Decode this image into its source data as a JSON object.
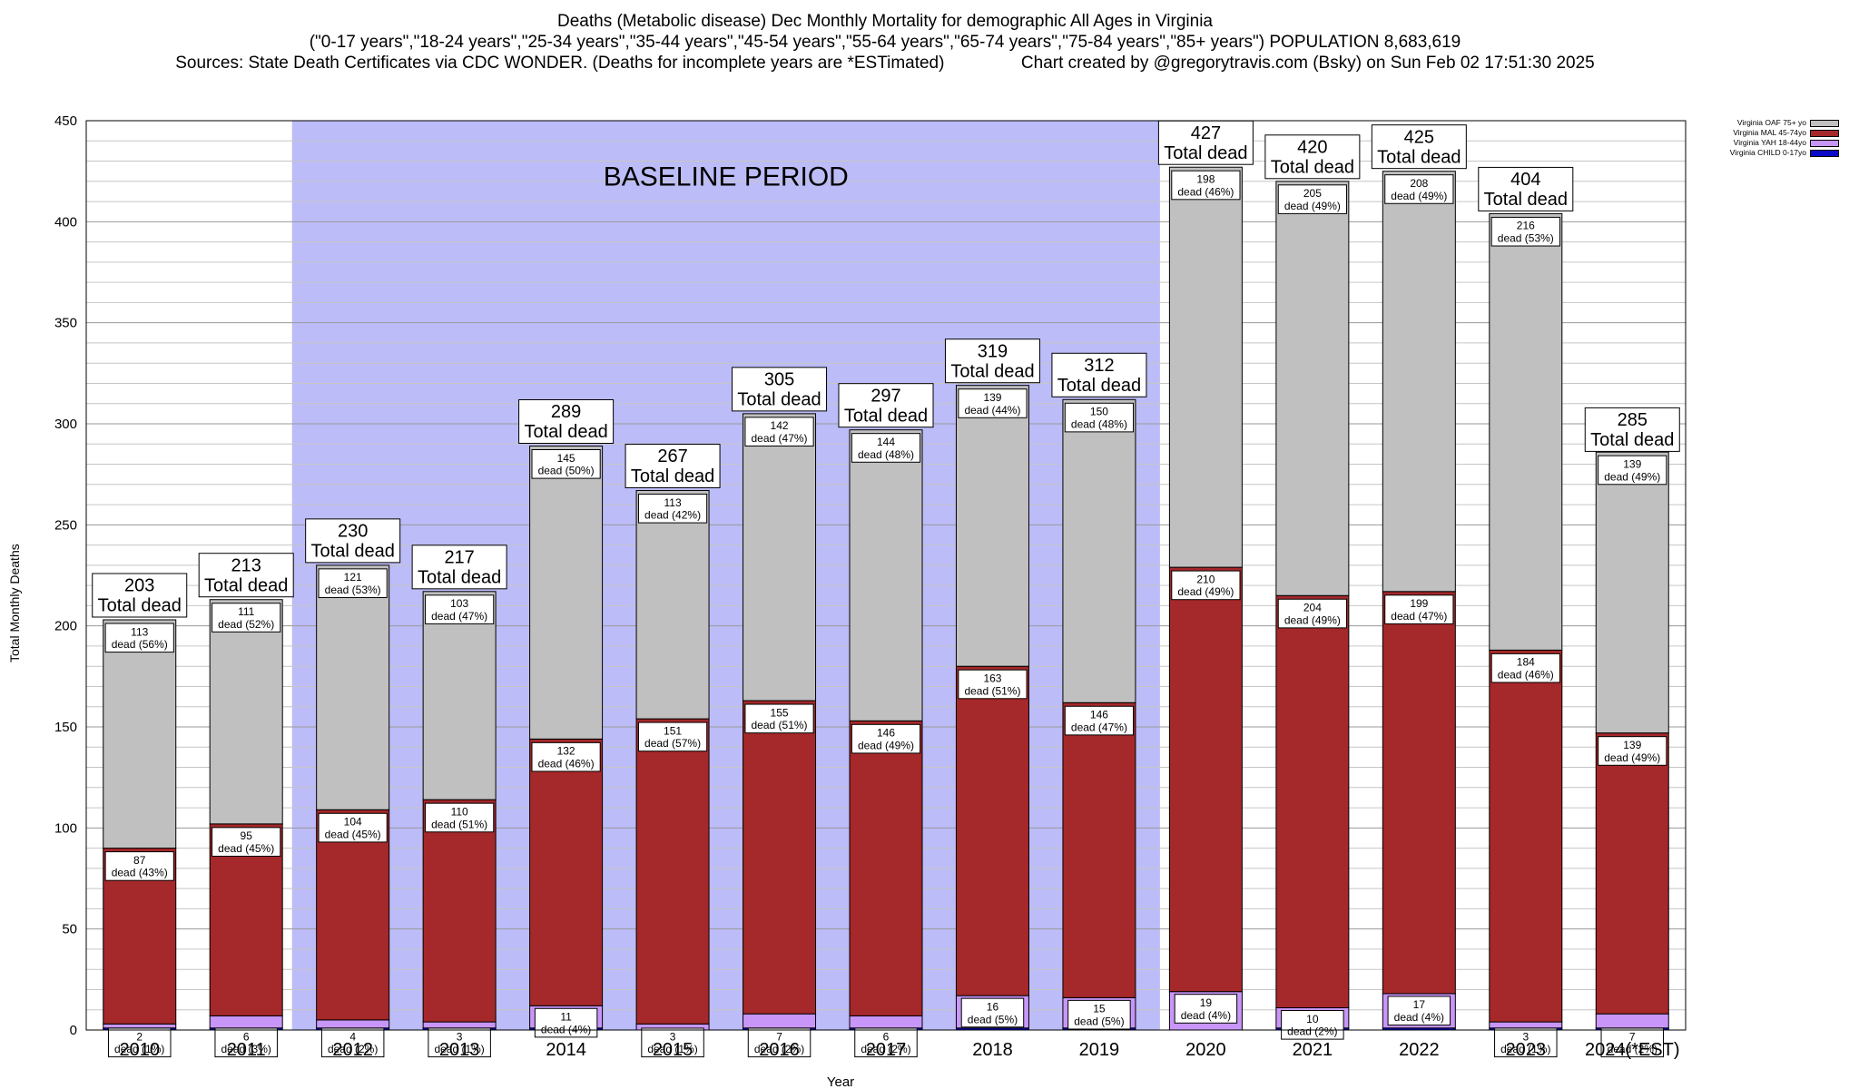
{
  "header": {
    "line1": "Deaths (Metabolic disease) Dec Monthly Mortality for demographic All Ages in Virginia",
    "line2": "(\"0-17 years\",\"18-24 years\",\"25-34 years\",\"35-44 years\",\"45-54 years\",\"55-64 years\",\"65-74 years\",\"75-84 years\",\"85+ years\") POPULATION 8,683,619",
    "line3": "Sources: State Death Certificates via CDC WONDER. (Deaths for incomplete years are *ESTimated)                Chart created by @gregorytravis.com (Bsky) on Sun Feb 02 17:51:30 2025"
  },
  "chart_data": {
    "type": "bar",
    "stacked": true,
    "xlabel": "Year",
    "ylabel": "Total Monthly Deaths",
    "ylim": [
      0,
      450
    ],
    "yticks": [
      0,
      50,
      100,
      150,
      200,
      250,
      300,
      350,
      400,
      450
    ],
    "grid": true,
    "legend_position": "top-right",
    "shaded_region": {
      "label": "BASELINE PERIOD",
      "from_category": "2012",
      "to_category": "2019",
      "color": "#bcbcf8"
    },
    "categories": [
      "2010",
      "2011",
      "2012",
      "2013",
      "2014",
      "2015",
      "2016",
      "2017",
      "2018",
      "2019",
      "2020",
      "2021",
      "2022",
      "2023",
      "2024(*EST)"
    ],
    "totals": [
      203,
      213,
      230,
      217,
      289,
      267,
      305,
      297,
      319,
      312,
      427,
      420,
      425,
      404,
      285
    ],
    "total_suffix": "Total dead",
    "series": [
      {
        "name": "Virginia CHILD 0-17yo",
        "color": "#0a0ac8",
        "values": [
          1,
          1,
          1,
          1,
          1,
          0,
          1,
          1,
          1,
          1,
          0,
          1,
          1,
          1,
          1
        ],
        "labels": [
          "",
          "",
          "",
          "",
          "",
          "",
          "",
          "",
          "",
          "",
          "",
          "",
          "",
          "",
          ""
        ]
      },
      {
        "name": "Virginia YAH 18-44yo",
        "color": "#c896f8",
        "values": [
          2,
          6,
          4,
          3,
          11,
          3,
          7,
          6,
          16,
          15,
          19,
          10,
          17,
          3,
          7
        ],
        "labels": [
          "2\ndead (1%)",
          "6\ndead (3%)",
          "4\ndead (2%)",
          "3\ndead (1%)",
          "11\ndead (4%)",
          "3\ndead (1%)",
          "7\ndead (2%)",
          "6\ndead (2%)",
          "16\ndead (5%)",
          "15\ndead (5%)",
          "19\ndead (4%)",
          "10\ndead (2%)",
          "17\ndead (4%)",
          "3\ndead (1%)",
          "7\ndead (2%)"
        ]
      },
      {
        "name": "Virginia MAL 45-74yo",
        "color": "#a5282a",
        "values": [
          87,
          95,
          104,
          110,
          132,
          151,
          155,
          146,
          163,
          146,
          210,
          204,
          199,
          184,
          139
        ],
        "labels": [
          "87\ndead (43%)",
          "95\ndead (45%)",
          "104\ndead (45%)",
          "110\ndead (51%)",
          "132\ndead (46%)",
          "151\ndead (57%)",
          "155\ndead (51%)",
          "146\ndead (49%)",
          "163\ndead (51%)",
          "146\ndead (47%)",
          "210\ndead (49%)",
          "204\ndead (49%)",
          "199\ndead (47%)",
          "184\ndead (46%)",
          "139\ndead (49%)"
        ]
      },
      {
        "name": "Virginia OAF 75+ yo",
        "color": "#c0c0c0",
        "values": [
          113,
          111,
          121,
          103,
          145,
          113,
          142,
          144,
          139,
          150,
          198,
          205,
          208,
          216,
          139
        ],
        "labels": [
          "113\ndead (56%)",
          "111\ndead (52%)",
          "121\ndead (53%)",
          "103\ndead (47%)",
          "145\ndead (50%)",
          "113\ndead (42%)",
          "142\ndead (47%)",
          "144\ndead (48%)",
          "139\ndead (44%)",
          "150\ndead (48%)",
          "198\ndead (46%)",
          "205\ndead (49%)",
          "208\ndead (49%)",
          "216\ndead (53%)",
          "139\ndead (49%)"
        ]
      }
    ]
  }
}
